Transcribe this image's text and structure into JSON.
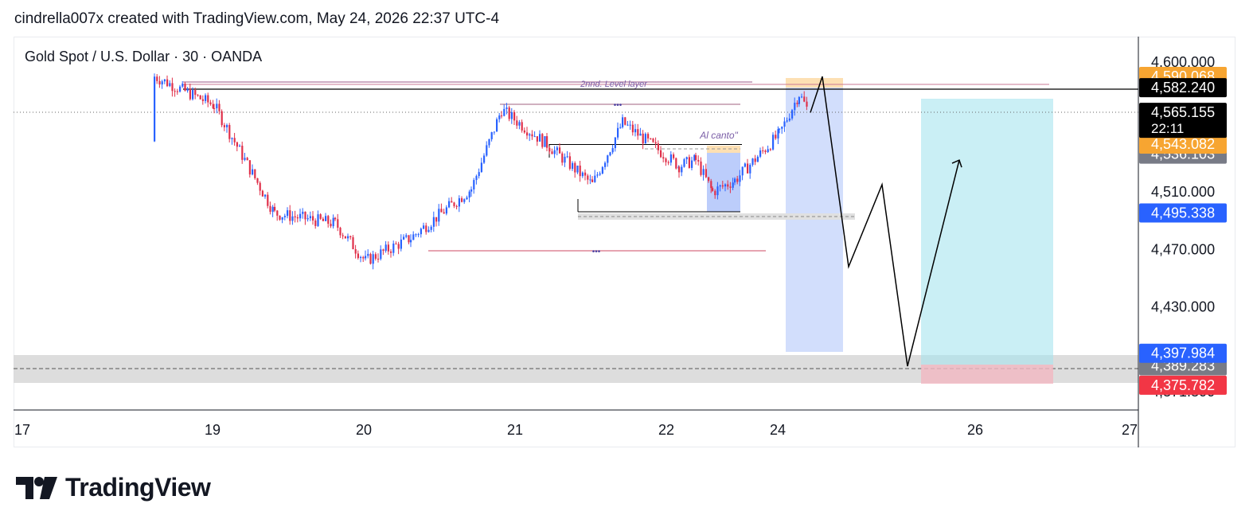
{
  "header": {
    "attribution": "cindrella007x created with TradingView.com, May 24, 2026 22:37 UTC-4"
  },
  "symbol": {
    "title": "Gold Spot / U.S. Dollar · 30 · OANDA"
  },
  "brand": {
    "name": "TradingView"
  },
  "colors": {
    "up": "#2962ff",
    "down": "#e0304a",
    "text": "#131722",
    "target_zone": "#a6e4ef",
    "stop_zone": "#f2b8c2",
    "range_highlight": "#c7d6fb",
    "support_band": "#d9d9d9",
    "label_black": "#000000",
    "label_blue": "#2962ff",
    "label_red": "#f23645",
    "label_orange": "#f7a531",
    "label_gray": "#787b86",
    "annotation": "#7b5ea7",
    "level_line": "#cc4a63"
  },
  "annotations": {
    "level_2": "2nnd. Level layer",
    "al_canto": "Al canto\"",
    "dots": "•••"
  },
  "chart_data": {
    "type": "candlestick",
    "title": "Gold Spot / U.S. Dollar · 30 · OANDA",
    "timeframe": "30",
    "x_tick_labels": [
      "17",
      "19",
      "20",
      "21",
      "22",
      "24",
      "26",
      "27"
    ],
    "y_tick_labels": [
      "4,600.000",
      "4,510.000",
      "4,470.000",
      "4,430.000"
    ],
    "ylim": [
      4360,
      4620
    ],
    "price_labels": [
      {
        "value": "4,590.068",
        "kind": "orange"
      },
      {
        "value": "4,582.240",
        "kind": "black"
      },
      {
        "value": "4,565.155",
        "kind": "black",
        "countdown": "22:11"
      },
      {
        "value": "4,543.082",
        "kind": "orange"
      },
      {
        "value": "4,536.103",
        "kind": "gray"
      },
      {
        "value": "4,495.338",
        "kind": "blue"
      },
      {
        "value": "4,397.984",
        "kind": "blue"
      },
      {
        "value": "4,389.283",
        "kind": "gray"
      },
      {
        "value": "4,375.782",
        "kind": "red"
      },
      {
        "value": "4,371.300",
        "kind": "plain"
      }
    ],
    "price_path": [
      [
        "17",
        4545
      ],
      [
        "17.5",
        4575
      ],
      [
        "18",
        4560
      ],
      [
        "18.7",
        4590
      ],
      [
        "19",
        4570
      ],
      [
        "19.4",
        4495
      ],
      [
        "19.8",
        4488
      ],
      [
        "20",
        4462
      ],
      [
        "20.3",
        4478
      ],
      [
        "20.7",
        4512
      ],
      [
        "20.9",
        4567
      ],
      [
        "21.2",
        4543
      ],
      [
        "21.5",
        4515
      ],
      [
        "21.7",
        4558
      ],
      [
        "22.2",
        4528
      ],
      [
        "22.5",
        4532
      ],
      [
        "22.8",
        4510
      ],
      [
        "23.2",
        4518
      ],
      [
        "24",
        4550
      ],
      [
        "24.2",
        4578
      ],
      [
        "24.3",
        4565
      ]
    ],
    "horizontal_levels": [
      {
        "label": "2nnd. Level layer",
        "value": 4589
      },
      {
        "label": "",
        "value": 4582.24
      },
      {
        "label": "•••",
        "value": 4574
      },
      {
        "label": "",
        "value": 4543
      },
      {
        "label": "",
        "value": 4495
      },
      {
        "label": "•••",
        "value": 4468
      },
      {
        "label": "",
        "value": 4389.3
      }
    ],
    "projection_path": [
      4565,
      4590,
      4458,
      4515,
      4389,
      4532
    ],
    "long_position": {
      "entry": 4389.283,
      "target": 4565.155,
      "stop": 4375.782
    }
  }
}
